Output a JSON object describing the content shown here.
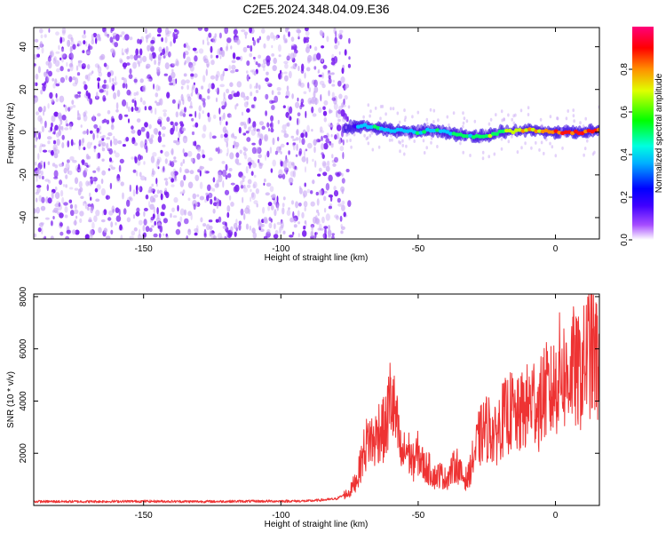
{
  "title": "C2E5.2024.348.04.09.E36",
  "colors": {
    "snr_line": "#ee3333",
    "noise_purple": "#7a1ff0",
    "noise_light": "#c9a8f5",
    "axis": "#000000"
  },
  "chart_data": [
    {
      "type": "heatmap",
      "name": "spectrogram",
      "xlabel": "Height of straight line (km)",
      "ylabel": "Frequency (Hz)",
      "xlim": [
        -190,
        16
      ],
      "ylim": [
        -50,
        49
      ],
      "xticks": [
        -150,
        -100,
        -50,
        0
      ],
      "xtick_labels": [
        "-150",
        "-100",
        "-50",
        "0"
      ],
      "yticks": [
        -40,
        -20,
        0,
        20,
        40
      ],
      "ytick_labels": [
        "-40",
        "-20",
        "0",
        "20",
        "40"
      ],
      "noise_region_x": [
        -190,
        -77
      ],
      "signal_start_x": -77,
      "signal_track": {
        "x": [
          -77,
          -70,
          -60,
          -50,
          -45,
          -40,
          -35,
          -30,
          -25,
          -20,
          -10,
          0,
          10,
          16
        ],
        "freq": [
          2,
          3,
          1,
          0,
          1,
          0,
          -1,
          -2,
          -2,
          0,
          1,
          0,
          0,
          1
        ],
        "amplitude": [
          0.45,
          0.5,
          0.5,
          0.55,
          0.5,
          0.5,
          0.55,
          0.55,
          0.6,
          0.65,
          0.75,
          0.85,
          0.9,
          0.85
        ]
      },
      "colorbar": {
        "label": "Normalized spectral amplitude",
        "range": [
          0,
          1
        ],
        "ticks": [
          0.0,
          0.2,
          0.4,
          0.6,
          0.8
        ],
        "tick_labels": [
          "0.0",
          "0.2",
          "0.4",
          "0.6",
          "0.8"
        ],
        "colormap": [
          "#ffffff",
          "#7a00ff",
          "#0000ff",
          "#00ffff",
          "#00ff00",
          "#ffff00",
          "#ff8000",
          "#ff0000",
          "#ff00a0"
        ]
      }
    },
    {
      "type": "line",
      "name": "snr",
      "xlabel": "Height of straight line (km)",
      "ylabel": "SNR (10 * v/v)",
      "xlim": [
        -190,
        16
      ],
      "ylim": [
        0,
        8100
      ],
      "xticks": [
        -150,
        -100,
        -50,
        0
      ],
      "xtick_labels": [
        "-150",
        "-100",
        "-50",
        "0"
      ],
      "yticks": [
        2000,
        4000,
        6000,
        8000
      ],
      "ytick_labels": [
        "2000",
        "4000",
        "6000",
        "8000"
      ],
      "series": [
        {
          "name": "SNR",
          "x": [
            -190,
            -170,
            -150,
            -130,
            -110,
            -90,
            -80,
            -75,
            -72,
            -70,
            -68,
            -66,
            -64,
            -62,
            -60,
            -58,
            -56,
            -54,
            -52,
            -50,
            -48,
            -46,
            -44,
            -42,
            -40,
            -38,
            -36,
            -34,
            -32,
            -30,
            -28,
            -26,
            -24,
            -22,
            -20,
            -18,
            -16,
            -14,
            -12,
            -10,
            -8,
            -6,
            -4,
            -2,
            0,
            2,
            4,
            6,
            8,
            10,
            12,
            14,
            16
          ],
          "values": [
            150,
            150,
            160,
            150,
            160,
            170,
            250,
            500,
            1100,
            2000,
            2600,
            2400,
            3000,
            2800,
            4200,
            3200,
            1800,
            2200,
            1600,
            2000,
            1500,
            1400,
            1100,
            1200,
            1000,
            1300,
            1600,
            1100,
            1000,
            1800,
            2500,
            2900,
            3000,
            2600,
            3200,
            3400,
            3600,
            3300,
            3600,
            3800,
            4100,
            3700,
            4400,
            4200,
            4600,
            5300,
            4800,
            5400,
            5000,
            5200,
            6000,
            5700,
            5500
          ]
        }
      ]
    }
  ]
}
